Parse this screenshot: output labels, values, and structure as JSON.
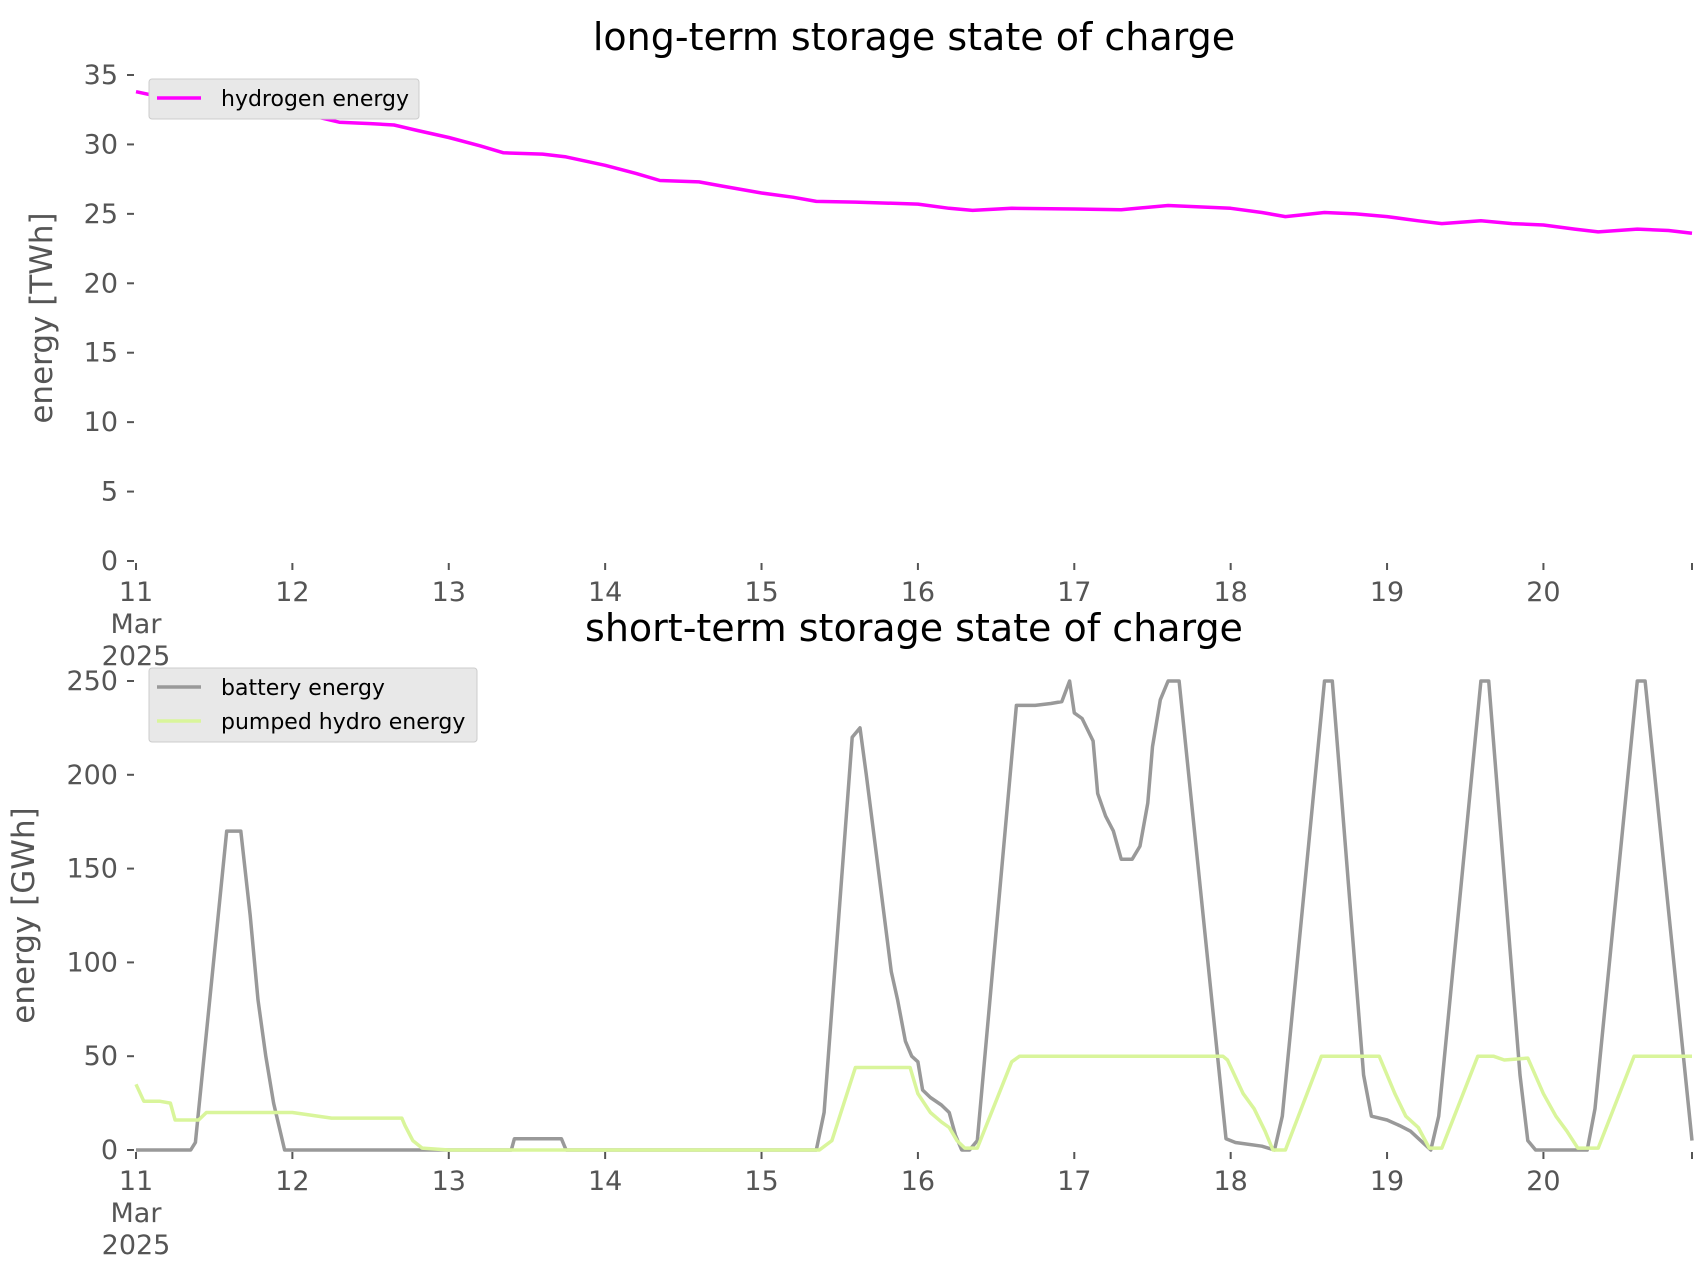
{
  "chart_data": [
    {
      "type": "line",
      "title": "long-term storage state of charge",
      "ylabel": "energy [TWh]",
      "xlabel": "",
      "ylim": [
        0,
        35
      ],
      "yticks": [
        0,
        5,
        10,
        15,
        20,
        25,
        30,
        35
      ],
      "xlim": [
        0,
        9.95
      ],
      "xticks": [
        {
          "x": 0,
          "label": "11",
          "sub": [
            "Mar",
            "2025"
          ]
        },
        {
          "x": 1,
          "label": "12"
        },
        {
          "x": 2,
          "label": "13"
        },
        {
          "x": 3,
          "label": "14"
        },
        {
          "x": 4,
          "label": "15"
        },
        {
          "x": 5,
          "label": "16"
        },
        {
          "x": 6,
          "label": "17"
        },
        {
          "x": 7,
          "label": "18"
        },
        {
          "x": 8,
          "label": "19"
        },
        {
          "x": 9,
          "label": "20"
        }
      ],
      "grid": false,
      "legend_position": "top-left",
      "x_description": "time (days since 11 Mar 2025)",
      "series": [
        {
          "name": "hydrogen energy",
          "color": "#ff00ff",
          "points": [
            [
              0,
              33.8
            ],
            [
              0.25,
              33.2
            ],
            [
              0.5,
              32.9
            ],
            [
              0.75,
              32.7
            ],
            [
              1.0,
              32.5
            ],
            [
              1.15,
              32.0
            ],
            [
              1.3,
              31.6
            ],
            [
              1.5,
              31.5
            ],
            [
              1.65,
              31.4
            ],
            [
              1.8,
              31.0
            ],
            [
              2.0,
              30.5
            ],
            [
              2.2,
              29.9
            ],
            [
              2.35,
              29.4
            ],
            [
              2.6,
              29.3
            ],
            [
              2.75,
              29.1
            ],
            [
              3.0,
              28.5
            ],
            [
              3.2,
              27.9
            ],
            [
              3.35,
              27.4
            ],
            [
              3.6,
              27.3
            ],
            [
              3.75,
              27.0
            ],
            [
              4.0,
              26.5
            ],
            [
              4.2,
              26.2
            ],
            [
              4.35,
              25.9
            ],
            [
              4.6,
              25.85
            ],
            [
              5.0,
              25.7
            ],
            [
              5.2,
              25.4
            ],
            [
              5.35,
              25.25
            ],
            [
              5.6,
              25.4
            ],
            [
              6.0,
              25.35
            ],
            [
              6.3,
              25.3
            ],
            [
              6.6,
              25.6
            ],
            [
              6.8,
              25.5
            ],
            [
              7.0,
              25.4
            ],
            [
              7.2,
              25.1
            ],
            [
              7.35,
              24.8
            ],
            [
              7.6,
              25.1
            ],
            [
              7.8,
              25.0
            ],
            [
              8.0,
              24.8
            ],
            [
              8.2,
              24.5
            ],
            [
              8.35,
              24.3
            ],
            [
              8.6,
              24.5
            ],
            [
              8.8,
              24.3
            ],
            [
              9.0,
              24.2
            ],
            [
              9.2,
              23.9
            ],
            [
              9.35,
              23.7
            ],
            [
              9.6,
              23.9
            ],
            [
              9.8,
              23.8
            ],
            [
              9.95,
              23.6
            ]
          ]
        }
      ]
    },
    {
      "type": "line",
      "title": "short-term storage state of charge",
      "ylabel": "energy [GWh]",
      "xlabel": "",
      "ylim": [
        0,
        250
      ],
      "yticks": [
        0,
        50,
        100,
        150,
        200,
        250
      ],
      "xlim": [
        0,
        9.95
      ],
      "xticks": [
        {
          "x": 0,
          "label": "11",
          "sub": [
            "Mar",
            "2025"
          ]
        },
        {
          "x": 1,
          "label": "12"
        },
        {
          "x": 2,
          "label": "13"
        },
        {
          "x": 3,
          "label": "14"
        },
        {
          "x": 4,
          "label": "15"
        },
        {
          "x": 5,
          "label": "16"
        },
        {
          "x": 6,
          "label": "17"
        },
        {
          "x": 7,
          "label": "18"
        },
        {
          "x": 8,
          "label": "19"
        },
        {
          "x": 9,
          "label": "20"
        }
      ],
      "grid": false,
      "legend_position": "top-left",
      "x_description": "time (days since 11 Mar 2025)",
      "series": [
        {
          "name": "battery energy",
          "color": "#999999",
          "points": [
            [
              0,
              0
            ],
            [
              0.35,
              0
            ],
            [
              0.38,
              4
            ],
            [
              0.58,
              170
            ],
            [
              0.67,
              170
            ],
            [
              0.73,
              125
            ],
            [
              0.78,
              80
            ],
            [
              0.83,
              50
            ],
            [
              0.88,
              25
            ],
            [
              0.95,
              0
            ],
            [
              2.4,
              0
            ],
            [
              2.42,
              6
            ],
            [
              2.72,
              6
            ],
            [
              2.75,
              0
            ],
            [
              4.35,
              0
            ],
            [
              4.4,
              20
            ],
            [
              4.58,
              220
            ],
            [
              4.63,
              225
            ],
            [
              4.67,
              200
            ],
            [
              4.83,
              95
            ],
            [
              4.87,
              80
            ],
            [
              4.92,
              58
            ],
            [
              4.96,
              50
            ],
            [
              5.0,
              47
            ],
            [
              5.03,
              32
            ],
            [
              5.08,
              28
            ],
            [
              5.15,
              24
            ],
            [
              5.2,
              20
            ],
            [
              5.24,
              8
            ],
            [
              5.28,
              0
            ],
            [
              5.33,
              0
            ],
            [
              5.38,
              5
            ],
            [
              5.63,
              237
            ],
            [
              5.75,
              237
            ],
            [
              5.85,
              238
            ],
            [
              5.92,
              239
            ],
            [
              5.97,
              250
            ],
            [
              6.0,
              233
            ],
            [
              6.05,
              230
            ],
            [
              6.12,
              218
            ],
            [
              6.15,
              190
            ],
            [
              6.2,
              178
            ],
            [
              6.25,
              170
            ],
            [
              6.3,
              155
            ],
            [
              6.37,
              155
            ],
            [
              6.42,
              162
            ],
            [
              6.47,
              185
            ],
            [
              6.5,
              215
            ],
            [
              6.55,
              240
            ],
            [
              6.6,
              250
            ],
            [
              6.67,
              250
            ],
            [
              6.97,
              6
            ],
            [
              7.03,
              4
            ],
            [
              7.2,
              2
            ],
            [
              7.28,
              0
            ],
            [
              7.33,
              18
            ],
            [
              7.6,
              250
            ],
            [
              7.65,
              250
            ],
            [
              7.85,
              40
            ],
            [
              7.9,
              18
            ],
            [
              8.0,
              16
            ],
            [
              8.08,
              13
            ],
            [
              8.15,
              10
            ],
            [
              8.28,
              0
            ],
            [
              8.33,
              18
            ],
            [
              8.6,
              250
            ],
            [
              8.65,
              250
            ],
            [
              8.85,
              40
            ],
            [
              8.9,
              5
            ],
            [
              8.95,
              0
            ],
            [
              9.28,
              0
            ],
            [
              9.33,
              22
            ],
            [
              9.6,
              250
            ],
            [
              9.65,
              250
            ],
            [
              9.95,
              5
            ]
          ]
        },
        {
          "name": "pumped hydro energy",
          "color": "#d9f59b",
          "points": [
            [
              0,
              35
            ],
            [
              0.05,
              26
            ],
            [
              0.15,
              26
            ],
            [
              0.22,
              25
            ],
            [
              0.25,
              16
            ],
            [
              0.4,
              16
            ],
            [
              0.45,
              20
            ],
            [
              1.0,
              20
            ],
            [
              1.25,
              17
            ],
            [
              1.5,
              17
            ],
            [
              1.7,
              17
            ],
            [
              1.72,
              13
            ],
            [
              1.77,
              5
            ],
            [
              1.83,
              1
            ],
            [
              2.0,
              0
            ],
            [
              4.37,
              0
            ],
            [
              4.45,
              5
            ],
            [
              4.6,
              44
            ],
            [
              4.95,
              44
            ],
            [
              5.0,
              30
            ],
            [
              5.08,
              20
            ],
            [
              5.15,
              15
            ],
            [
              5.2,
              12
            ],
            [
              5.25,
              5
            ],
            [
              5.3,
              1
            ],
            [
              5.38,
              1
            ],
            [
              5.6,
              47
            ],
            [
              5.65,
              50
            ],
            [
              6.95,
              50
            ],
            [
              6.98,
              48
            ],
            [
              7.08,
              30
            ],
            [
              7.15,
              22
            ],
            [
              7.22,
              10
            ],
            [
              7.27,
              0
            ],
            [
              7.35,
              0
            ],
            [
              7.58,
              50
            ],
            [
              7.95,
              50
            ],
            [
              8.05,
              30
            ],
            [
              8.12,
              18
            ],
            [
              8.2,
              12
            ],
            [
              8.27,
              1
            ],
            [
              8.35,
              1
            ],
            [
              8.58,
              50
            ],
            [
              8.68,
              50
            ],
            [
              8.75,
              48
            ],
            [
              8.9,
              49
            ],
            [
              9.0,
              30
            ],
            [
              9.08,
              18
            ],
            [
              9.15,
              10
            ],
            [
              9.22,
              1
            ],
            [
              9.35,
              1
            ],
            [
              9.58,
              50
            ],
            [
              9.95,
              50
            ]
          ]
        }
      ]
    }
  ]
}
